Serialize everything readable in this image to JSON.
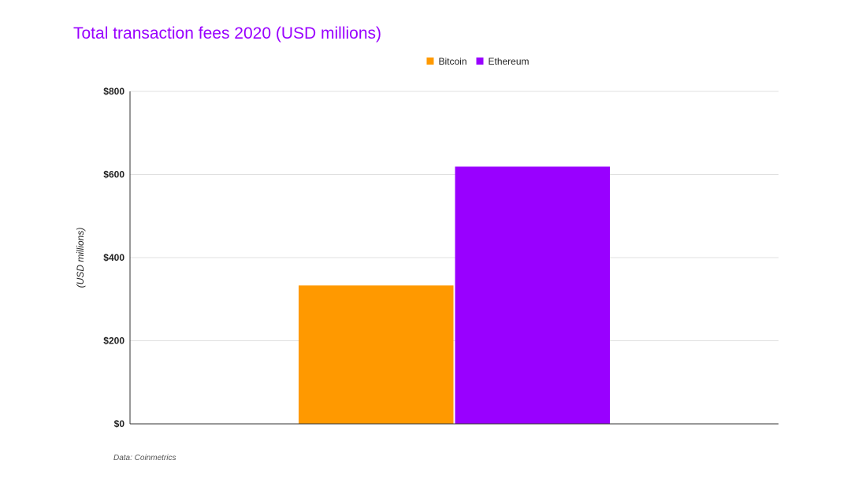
{
  "chart_data": {
    "type": "bar",
    "title": "Total transaction fees 2020 (USD millions)",
    "categories": [
      ""
    ],
    "series": [
      {
        "name": "Bitcoin",
        "values": [
          333
        ],
        "color": "#ff9900"
      },
      {
        "name": "Ethereum",
        "values": [
          619
        ],
        "color": "#9900ff"
      }
    ],
    "xlabel": "",
    "ylabel": "(USD millions)",
    "ylim": [
      0,
      800
    ],
    "yticks": [
      0,
      200,
      400,
      600,
      800
    ],
    "ytick_labels": [
      "$0",
      "$200",
      "$400",
      "$600",
      "$800"
    ],
    "grid": true,
    "legend_position": "top-center",
    "source": "Data: Coinmetrics"
  },
  "colors": {
    "title": "#9900ff"
  }
}
